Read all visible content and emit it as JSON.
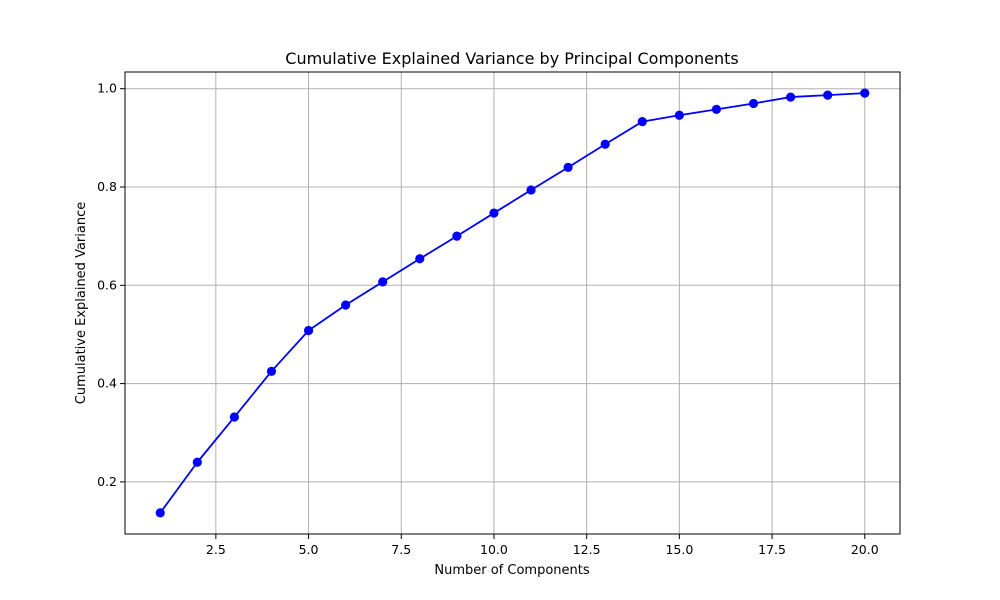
{
  "chart_data": {
    "type": "line",
    "title": "Cumulative Explained Variance by Principal Components",
    "xlabel": "Number of Components",
    "ylabel": "Cumulative Explained Variance",
    "x": [
      1,
      2,
      3,
      4,
      5,
      6,
      7,
      8,
      9,
      10,
      11,
      12,
      13,
      14,
      15,
      16,
      17,
      18,
      19,
      20
    ],
    "series": [
      {
        "values": [
          0.137,
          0.24,
          0.332,
          0.425,
          0.508,
          0.56,
          0.607,
          0.654,
          0.7,
          0.747,
          0.794,
          0.84,
          0.887,
          0.933,
          0.946,
          0.958,
          0.97,
          0.983,
          0.987,
          0.991
        ],
        "color": "#0000ff",
        "marker": "circle"
      }
    ],
    "xlim": [
      0.05,
      20.95
    ],
    "ylim": [
      0.094,
      1.034
    ],
    "x_ticks": [
      2.5,
      5.0,
      7.5,
      10.0,
      12.5,
      15.0,
      17.5,
      20.0
    ],
    "x_tick_labels": [
      "2.5",
      "5.0",
      "7.5",
      "10.0",
      "12.5",
      "15.0",
      "17.5",
      "20.0"
    ],
    "y_ticks": [
      0.2,
      0.4,
      0.6,
      0.8,
      1.0
    ],
    "y_tick_labels": [
      "0.2",
      "0.4",
      "0.6",
      "0.8",
      "1.0"
    ],
    "grid": true,
    "grid_color": "#b0b0b0",
    "axis_color": "#000000"
  }
}
